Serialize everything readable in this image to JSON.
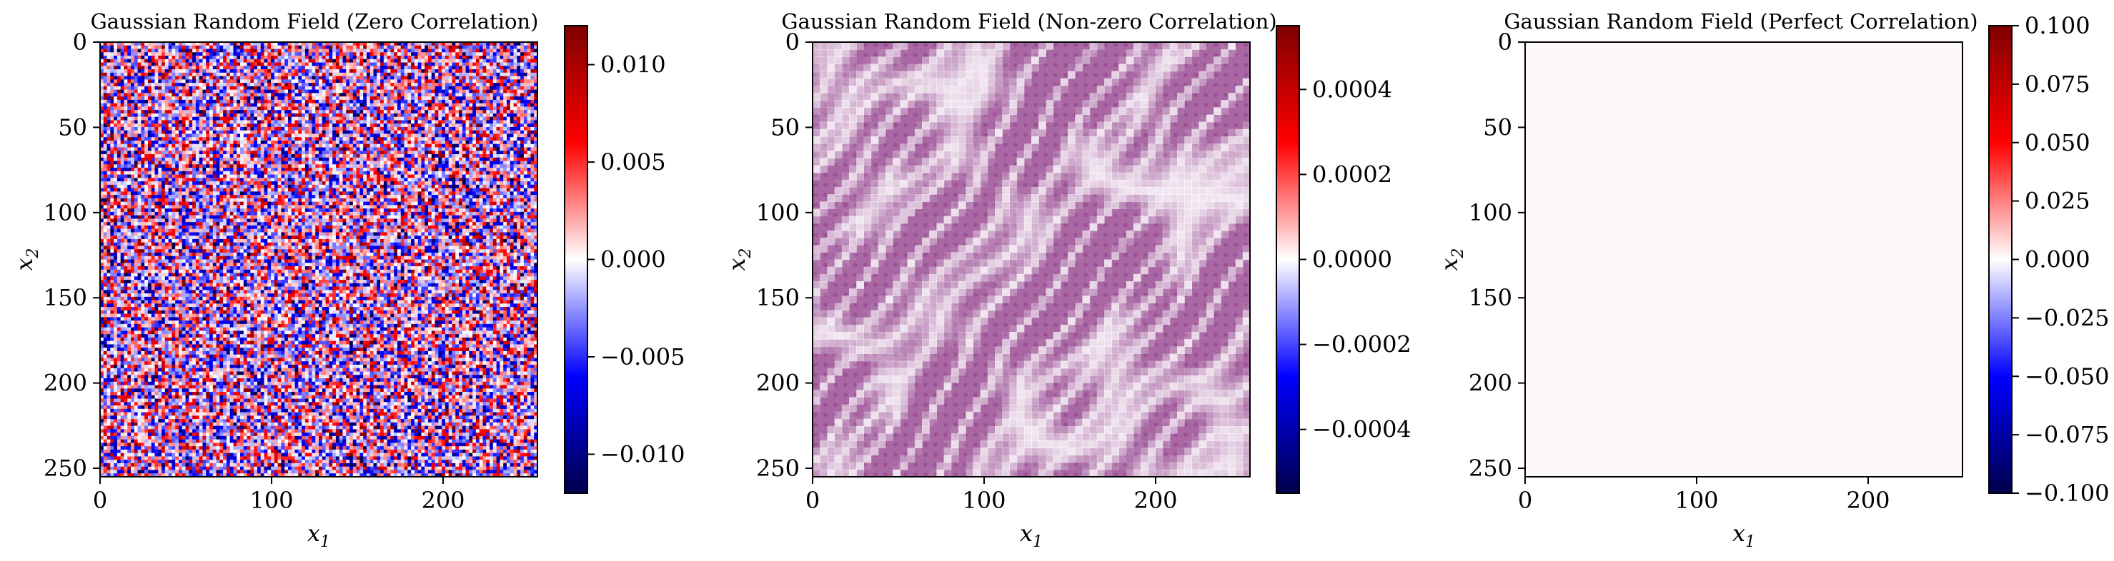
{
  "chart_data": [
    {
      "type": "heatmap",
      "title": "Gaussian Random Field (Zero Correlation)",
      "xlabel": "x1",
      "ylabel": "x2",
      "xlim": [
        0,
        255
      ],
      "ylim": [
        255,
        0
      ],
      "xticks": [
        0,
        100,
        200
      ],
      "yticks": [
        0,
        50,
        100,
        150,
        200,
        250
      ],
      "colormap": "seismic",
      "color_range": [
        -0.012,
        0.012
      ],
      "colorbar_ticks": [
        0.01,
        0.005,
        0.0,
        -0.005,
        -0.01
      ],
      "colorbar_tick_labels": [
        "0.010",
        "0.005",
        "0.000",
        "−0.005",
        "−0.010"
      ],
      "field": "uncorrelated white noise"
    },
    {
      "type": "heatmap",
      "title": "Gaussian Random Field (Non-zero Correlation)",
      "xlabel": "x1",
      "ylabel": "x2",
      "xlim": [
        0,
        255
      ],
      "ylim": [
        255,
        0
      ],
      "xticks": [
        0,
        100,
        200
      ],
      "yticks": [
        0,
        50,
        100,
        150,
        200,
        250
      ],
      "colormap": "seismic",
      "color_range": [
        -0.00055,
        0.00055
      ],
      "colorbar_ticks": [
        0.0004,
        0.0002,
        0.0,
        -0.0002,
        -0.0004
      ],
      "colorbar_tick_labels": [
        "0.0004",
        "0.0002",
        "0.0000",
        "−0.0002",
        "−0.0004"
      ],
      "field": "smooth correlated field",
      "field_color": "#8e3a88"
    },
    {
      "type": "heatmap",
      "title": "Gaussian Random Field (Perfect Correlation)",
      "xlabel": "x1",
      "ylabel": "x2",
      "xlim": [
        0,
        255
      ],
      "ylim": [
        255,
        0
      ],
      "xticks": [
        0,
        100,
        200
      ],
      "yticks": [
        0,
        50,
        100,
        150,
        200,
        250
      ],
      "colormap": "seismic",
      "color_range": [
        -0.1,
        0.1
      ],
      "colorbar_ticks": [
        0.1,
        0.075,
        0.05,
        0.025,
        0.0,
        -0.025,
        -0.05,
        -0.075,
        -0.1
      ],
      "colorbar_tick_labels": [
        "0.100",
        "0.075",
        "0.050",
        "0.025",
        "0.000",
        "−0.025",
        "−0.050",
        "−0.075",
        "−0.100"
      ],
      "field": "constant",
      "field_color": "#fdf8fb"
    }
  ],
  "colors": {
    "seismic_dark_blue": "#00004c",
    "seismic_blue": "#0000ff",
    "seismic_white": "#ffffff",
    "seismic_red": "#ff0000",
    "seismic_dark_red": "#7f0000"
  }
}
